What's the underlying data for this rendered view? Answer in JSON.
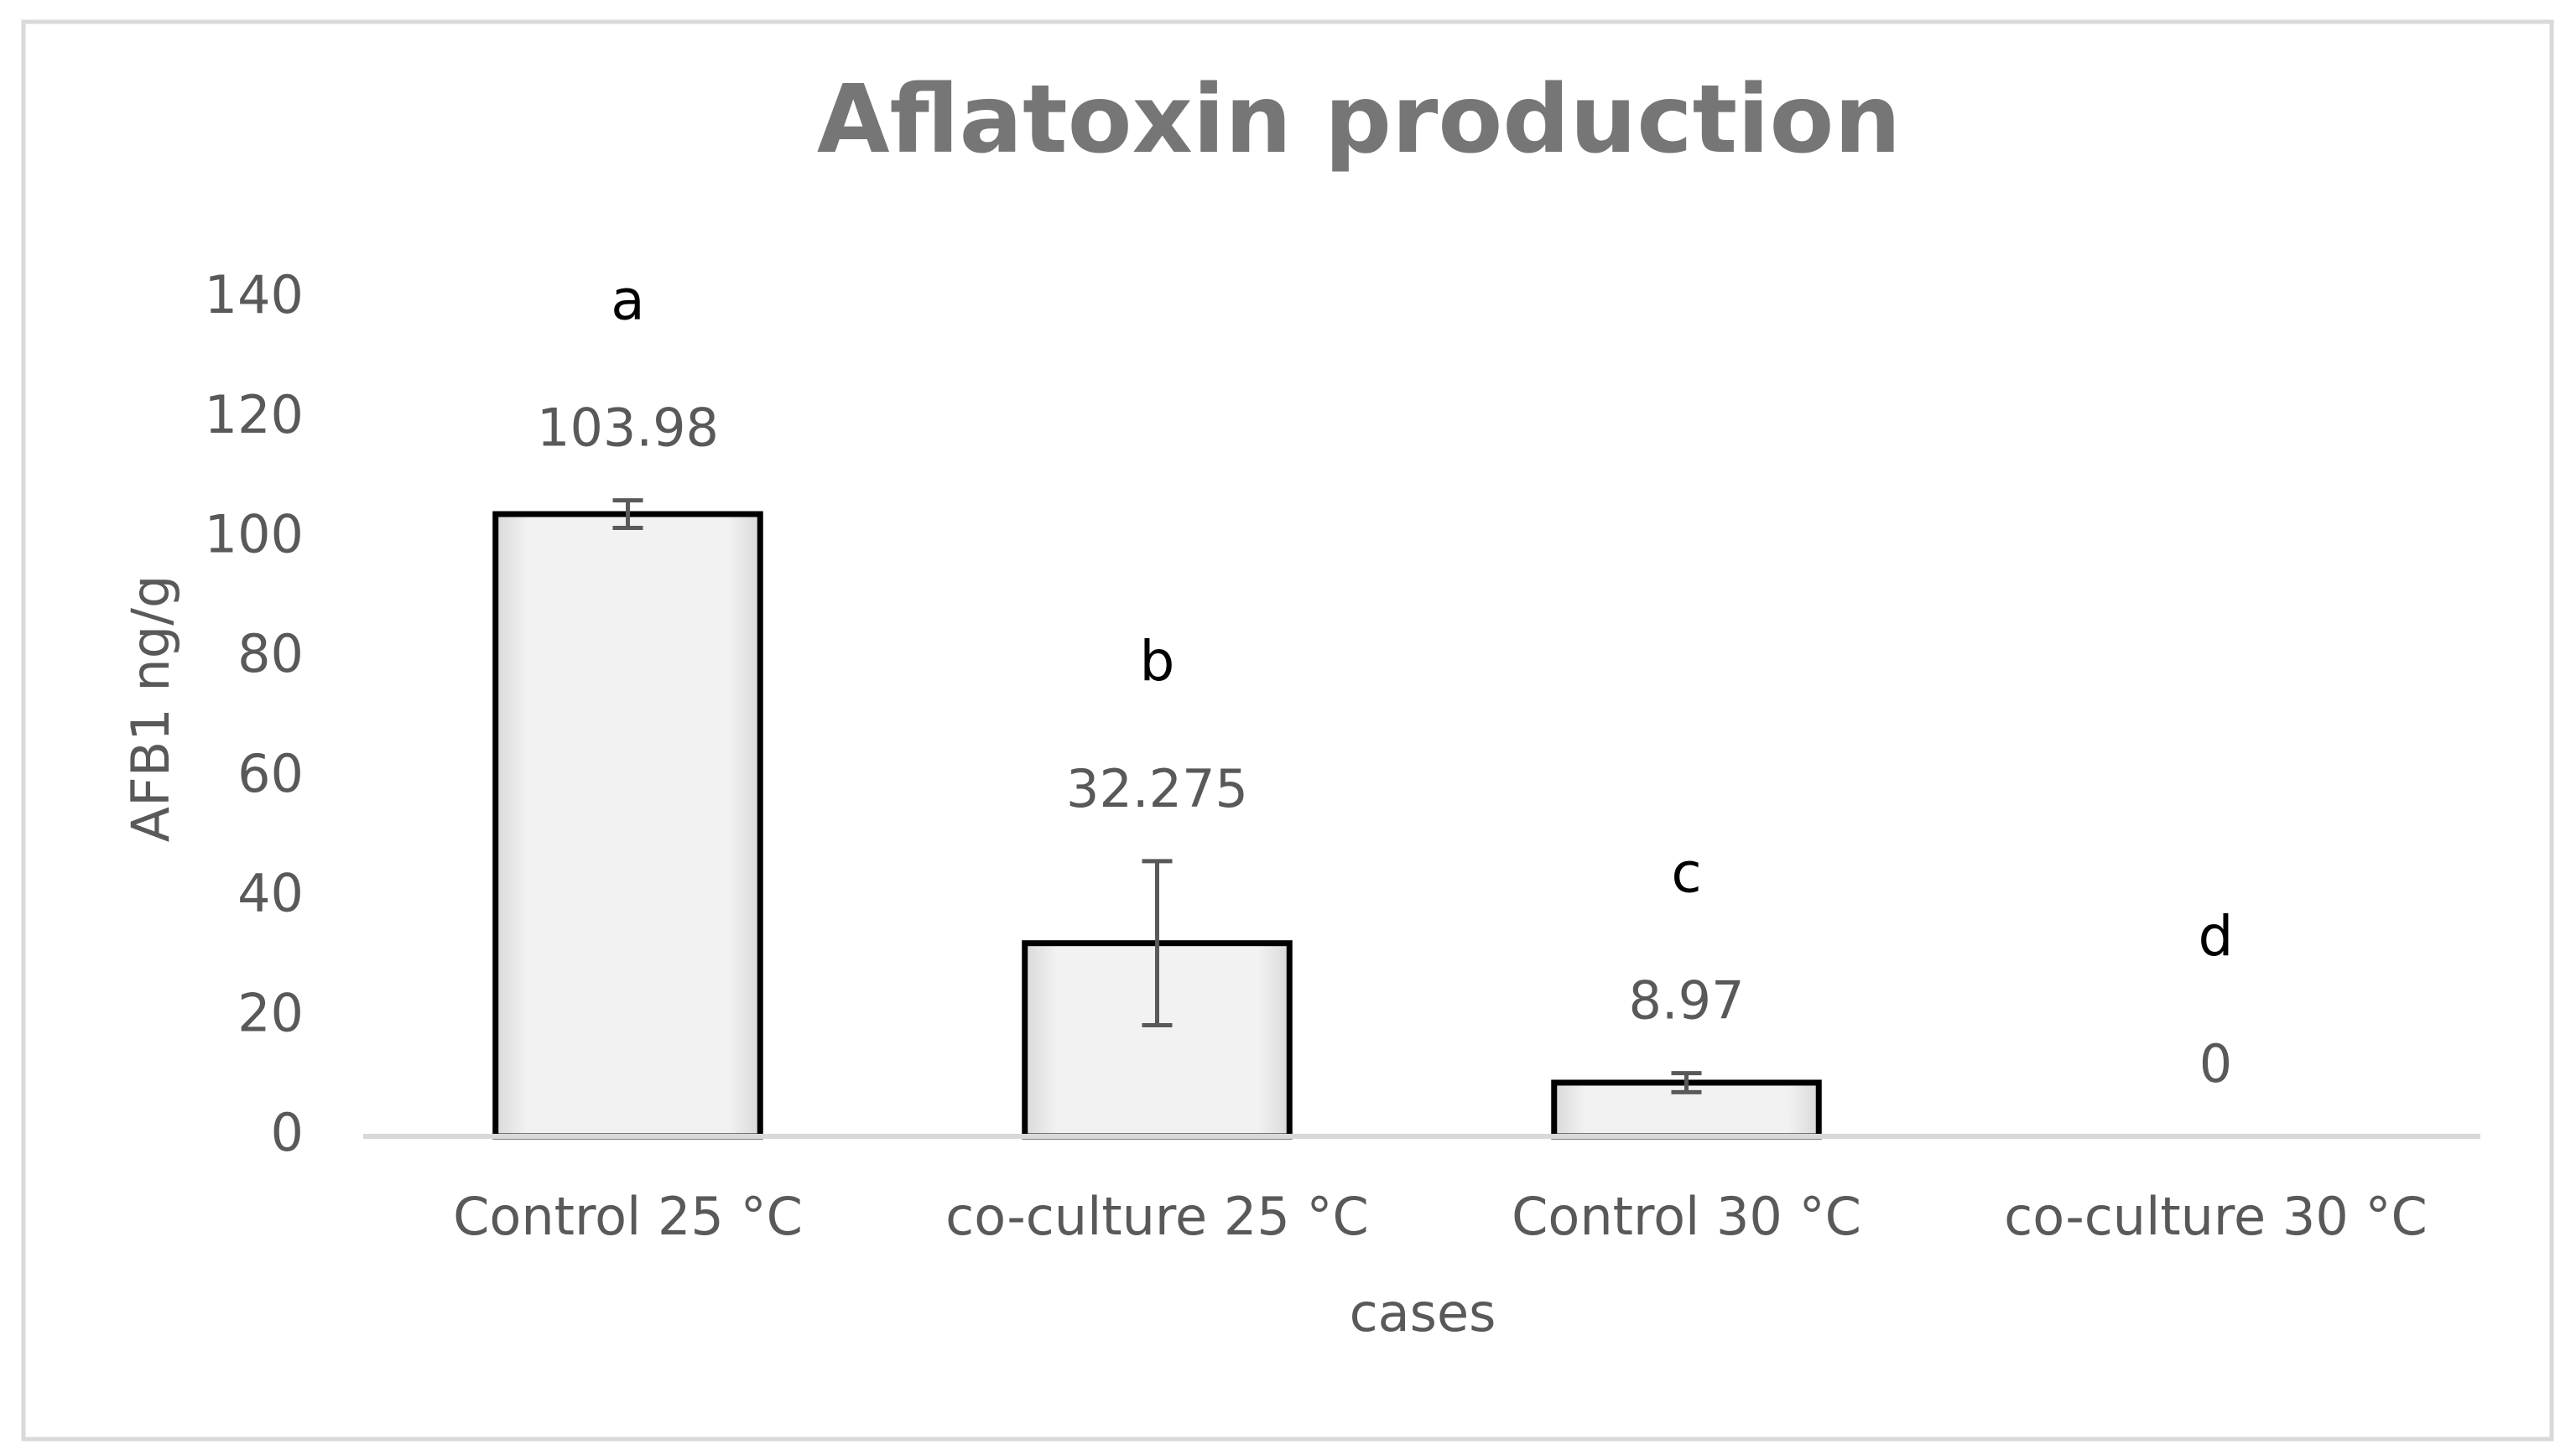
{
  "chart_data": {
    "type": "bar",
    "title": "Aflatoxin production",
    "x_label": "cases",
    "y_label": "AFB1 ng/g",
    "categories": [
      "Control 25 °C",
      "co-culture 25 °C",
      "Control 30 °C",
      "co-culture 30 °C"
    ],
    "values": [
      103.98,
      32.275,
      8.97,
      0
    ],
    "errors": [
      2.3,
      13.7,
      1.6,
      0
    ],
    "significance_letters": [
      "a",
      "b",
      "c",
      "d"
    ],
    "color": "#f2f2f2",
    "edge_color": "#000000",
    "ylim": [
      0,
      140
    ],
    "yticks": [
      0,
      20,
      40,
      60,
      80,
      100,
      120,
      140
    ],
    "grid": false
  }
}
